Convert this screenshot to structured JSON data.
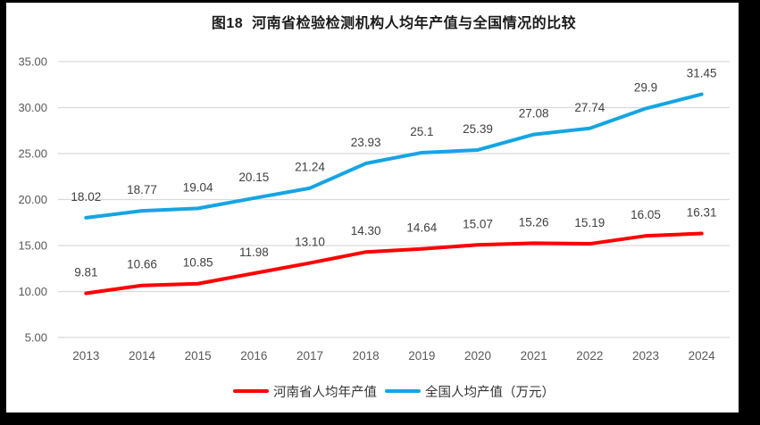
{
  "figure": {
    "frame_color": "#000000",
    "background": "#ffffff"
  },
  "chart_data": {
    "type": "line",
    "title": "图18  河南省检验检测机构人均年产值与全国情况的比较",
    "categories": [
      "2013",
      "2014",
      "2015",
      "2016",
      "2017",
      "2018",
      "2019",
      "2020",
      "2021",
      "2022",
      "2023",
      "2024"
    ],
    "series": [
      {
        "name": "河南省人均年产值",
        "color": "#FF0000",
        "values": [
          9.81,
          10.66,
          10.85,
          11.98,
          13.1,
          14.3,
          14.64,
          15.07,
          15.26,
          15.19,
          16.05,
          16.31
        ],
        "labels": [
          "9.81",
          "10.66",
          "10.85",
          "11.98",
          "13.10",
          "14.30",
          "14.64",
          "15.07",
          "15.26",
          "15.19",
          "16.05",
          "16.31"
        ]
      },
      {
        "name": "全国人均产值（万元）",
        "color": "#14A5E3",
        "values": [
          18.02,
          18.77,
          19.04,
          20.15,
          21.24,
          23.93,
          25.1,
          25.39,
          27.08,
          27.74,
          29.9,
          31.45
        ],
        "labels": [
          "18.02",
          "18.77",
          "19.04",
          "20.15",
          "21.24",
          "23.93",
          "25.1",
          "25.39",
          "27.08",
          "27.74",
          "29.9",
          "31.45"
        ]
      }
    ],
    "y_axis": {
      "min": 5,
      "max": 35,
      "step": 5,
      "tick_labels": [
        "5.00",
        "10.00",
        "15.00",
        "20.00",
        "25.00",
        "30.00",
        "35.00"
      ]
    },
    "grid": true,
    "legend_position": "bottom",
    "colors": {
      "gridline": "#DADADA",
      "tick_label": "#595959",
      "data_label": "#404040"
    }
  }
}
